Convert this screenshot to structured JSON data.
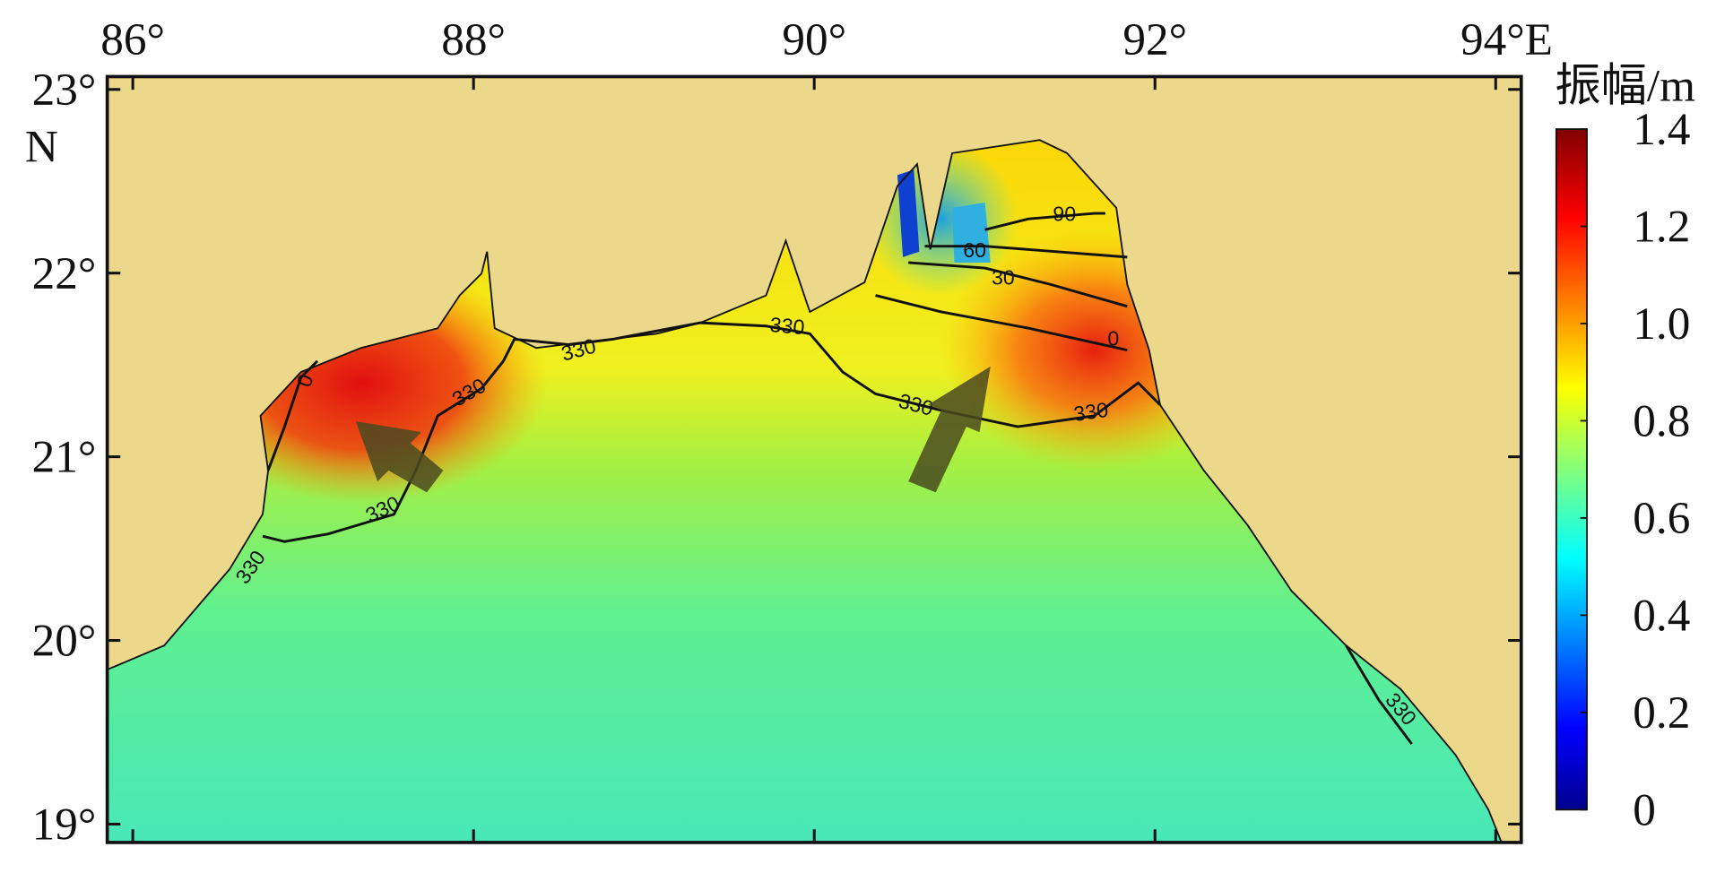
{
  "map": {
    "xlim": [
      85.85,
      94.15
    ],
    "ylim": [
      18.9,
      23.07
    ],
    "xticks": [
      {
        "value": 86,
        "label": "86°"
      },
      {
        "value": 88,
        "label": "88°"
      },
      {
        "value": 90,
        "label": "90°"
      },
      {
        "value": 92,
        "label": "92°"
      },
      {
        "value": 94,
        "label": "94°E"
      }
    ],
    "yticks": [
      {
        "value": 23,
        "label": "23°"
      },
      {
        "value": 22,
        "label": "22°"
      },
      {
        "value": 21,
        "label": "21°"
      },
      {
        "value": 20,
        "label": "20°"
      },
      {
        "value": 19,
        "label": "19°"
      }
    ],
    "y_unit": "N",
    "colorbar": {
      "title": "振幅/m",
      "clim": [
        0,
        1.4
      ],
      "ticks": [
        1.4,
        1.2,
        {
          "value": 1,
          "label": "1.0"
        },
        0.8,
        0.6,
        0.4,
        0.2,
        0
      ]
    },
    "contour_labels": [
      "0",
      "330",
      "330",
      "330",
      "330",
      "330",
      "330",
      "330",
      "0",
      "30",
      "60",
      "90",
      "330"
    ]
  }
}
